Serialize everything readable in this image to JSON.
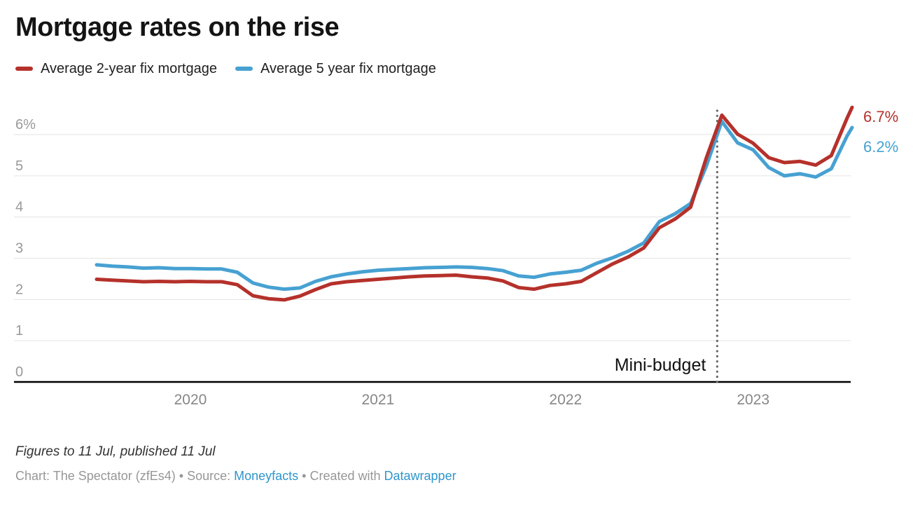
{
  "header": {
    "title": "Mortgage rates on the rise"
  },
  "legend": [
    {
      "label": "Average 2-year fix mortgage",
      "color": "#b5312b"
    },
    {
      "label": "Average 5 year fix mortgage",
      "color": "#47a1d2"
    }
  ],
  "chart_data": {
    "type": "line",
    "title": "Mortgage rates on the rise",
    "x_unit": "months since Jul 2019, monthly points Jul 2019 - Jul 2023 plus 11 Jul 2023",
    "x": [
      0,
      1,
      2,
      3,
      4,
      5,
      6,
      7,
      8,
      9,
      10,
      11,
      12,
      13,
      14,
      15,
      16,
      17,
      18,
      19,
      20,
      21,
      22,
      23,
      24,
      25,
      26,
      27,
      28,
      29,
      30,
      31,
      32,
      33,
      34,
      35,
      36,
      37,
      38,
      39,
      40,
      41,
      42,
      43,
      44,
      45,
      46,
      47,
      48,
      48.33
    ],
    "series": [
      {
        "name": "Average 2-year fix mortgage",
        "color": "#b5312b",
        "end_label": "6.7%",
        "values": [
          2.49,
          2.47,
          2.45,
          2.43,
          2.44,
          2.43,
          2.44,
          2.43,
          2.43,
          2.36,
          2.09,
          2.02,
          1.99,
          2.08,
          2.24,
          2.38,
          2.43,
          2.46,
          2.49,
          2.52,
          2.55,
          2.57,
          2.58,
          2.59,
          2.55,
          2.52,
          2.45,
          2.29,
          2.25,
          2.34,
          2.38,
          2.44,
          2.65,
          2.86,
          3.03,
          3.25,
          3.74,
          3.95,
          4.24,
          5.43,
          6.47,
          6.01,
          5.79,
          5.44,
          5.32,
          5.35,
          5.26,
          5.49,
          6.39,
          6.66
        ]
      },
      {
        "name": "Average 5 year fix mortgage",
        "color": "#47a1d2",
        "end_label": "6.2%",
        "values": [
          2.84,
          2.81,
          2.79,
          2.76,
          2.77,
          2.75,
          2.75,
          2.74,
          2.74,
          2.66,
          2.4,
          2.3,
          2.25,
          2.28,
          2.44,
          2.55,
          2.62,
          2.67,
          2.71,
          2.73,
          2.75,
          2.77,
          2.78,
          2.79,
          2.78,
          2.75,
          2.7,
          2.57,
          2.54,
          2.62,
          2.66,
          2.71,
          2.88,
          3.01,
          3.17,
          3.37,
          3.89,
          4.08,
          4.33,
          5.23,
          6.32,
          5.8,
          5.63,
          5.2,
          5.0,
          5.05,
          4.97,
          5.17,
          5.96,
          6.17
        ]
      }
    ],
    "y_axis": {
      "range": [
        0,
        6.85
      ],
      "ticks": [
        {
          "value": 0,
          "label": "0"
        },
        {
          "value": 1,
          "label": "1"
        },
        {
          "value": 2,
          "label": "2"
        },
        {
          "value": 3,
          "label": "3"
        },
        {
          "value": 4,
          "label": "4"
        },
        {
          "value": 5,
          "label": "5"
        },
        {
          "value": 6,
          "label": "6%"
        }
      ]
    },
    "x_axis": {
      "year_labels": [
        {
          "label": "2020",
          "month": 6
        },
        {
          "label": "2021",
          "month": 18
        },
        {
          "label": "2022",
          "month": 30
        },
        {
          "label": "2023",
          "month": 42
        }
      ]
    },
    "annotation": {
      "label": "Mini-budget",
      "x_month": 39.7
    },
    "grid": "horizontal only",
    "legend_position": "top"
  },
  "footer": {
    "notes": "Figures to 11 Jul, published 11 Jul",
    "byline_prefix": "Chart: The Spectator (zfEs4) • Source: ",
    "source_link": "Moneyfacts",
    "byline_middle": " • Created with ",
    "tool_link": "Datawrapper"
  },
  "colors": {
    "line_2yr": "#b5312b",
    "line_5yr": "#47a1d2",
    "gridline": "#e3e3e3",
    "axis_baseline": "#000000",
    "y_tick_label": "#999999",
    "x_tick_label": "#878787",
    "annotation_line": "#666666",
    "link": "#2e96ce"
  }
}
